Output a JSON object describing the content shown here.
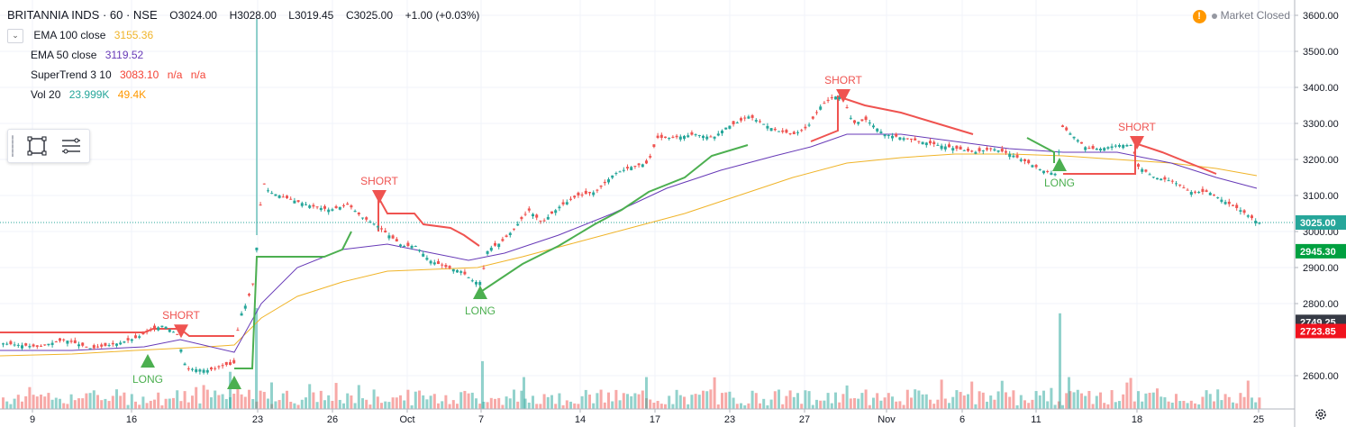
{
  "header": {
    "symbol": "BRITANNIA INDS · 60 · NSE",
    "open": "O3024.00",
    "high": "H3028.00",
    "low": "L3019.45",
    "close": "C3025.00",
    "change": "+1.00 (+0.03%)"
  },
  "indicators": [
    {
      "label": "EMA 100 close",
      "value": "3155.36",
      "value2": "",
      "value3": "",
      "color": "#f0b429"
    },
    {
      "label": "EMA 50 close",
      "value": "3119.52",
      "value2": "",
      "value3": "",
      "color": "#673ab7"
    },
    {
      "label": "SuperTrend 3 10",
      "value": "3083.10",
      "value2": "n/a",
      "value3": "n/a",
      "color": "#f44336"
    },
    {
      "label": "Vol 20",
      "value": "23.999K",
      "value2": "49.4K",
      "value3": "",
      "color": "#26a69a",
      "color2": "#ff9800"
    }
  ],
  "market_status": "Market Closed",
  "chart_data": {
    "type": "candlestick",
    "ylim": [
      2530,
      3620
    ],
    "y_ticks": [
      "3600.00",
      "3500.00",
      "3400.00",
      "3300.00",
      "3200.00",
      "3100.00",
      "3000.00",
      "2900.00",
      "2800.00",
      "2600.00"
    ],
    "x_ticks": [
      "9",
      "16",
      "23",
      "26",
      "Oct",
      "7",
      "14",
      "17",
      "23",
      "27",
      "Nov",
      "6",
      "11",
      "18",
      "25"
    ],
    "price_labels": [
      {
        "text": "3025.00",
        "value": 3025,
        "color": "#26a69a"
      },
      {
        "text": "2945.30",
        "value": 2945.3,
        "color": "#00a040"
      },
      {
        "text": "2749.25",
        "value": 2749.25,
        "color": "#363a45"
      },
      {
        "text": "2723.85",
        "value": 2723.85,
        "color": "#f0131e"
      }
    ],
    "last_price": 3025,
    "signals": [
      {
        "text": "LONG",
        "type": "long",
        "x_index": 0,
        "value": 2640
      },
      {
        "text": "SHORT",
        "type": "short",
        "x_index": 1,
        "value": 2722
      },
      {
        "text": "SHORT",
        "type": "short",
        "x_index": 2,
        "value": 3095
      },
      {
        "text": "LONG",
        "type": "long",
        "x_index": 3,
        "value": 2830
      },
      {
        "text": "SHORT",
        "type": "short",
        "x_index": 4,
        "value": 3375
      },
      {
        "text": "LONG",
        "type": "long",
        "x_index": 5,
        "value": 3185
      },
      {
        "text": "SHORT",
        "type": "short",
        "x_index": 6,
        "value": 3245
      }
    ],
    "extra_long_marker": {
      "value": 2580
    },
    "price_path": [
      [
        0,
        2690
      ],
      [
        40,
        2680
      ],
      [
        70,
        2700
      ],
      [
        100,
        2675
      ],
      [
        130,
        2690
      ],
      [
        150,
        2705
      ],
      [
        165,
        2725
      ],
      [
        180,
        2740
      ],
      [
        195,
        2715
      ],
      [
        205,
        2620
      ],
      [
        230,
        2615
      ],
      [
        250,
        2630
      ],
      [
        258,
        2630
      ],
      [
        264,
        2760
      ],
      [
        272,
        2800
      ],
      [
        280,
        2860
      ],
      [
        285,
        3000
      ],
      [
        290,
        3140
      ],
      [
        297,
        3110
      ],
      [
        320,
        3090
      ],
      [
        345,
        3070
      ],
      [
        365,
        3060
      ],
      [
        385,
        3075
      ],
      [
        400,
        3040
      ],
      [
        415,
        3020
      ],
      [
        430,
        2990
      ],
      [
        445,
        2960
      ],
      [
        460,
        2960
      ],
      [
        475,
        2920
      ],
      [
        495,
        2900
      ],
      [
        510,
        2890
      ],
      [
        525,
        2860
      ],
      [
        532,
        2860
      ],
      [
        540,
        2950
      ],
      [
        555,
        2970
      ],
      [
        570,
        3010
      ],
      [
        585,
        3060
      ],
      [
        600,
        3025
      ],
      [
        620,
        3070
      ],
      [
        640,
        3100
      ],
      [
        660,
        3110
      ],
      [
        680,
        3160
      ],
      [
        700,
        3180
      ],
      [
        718,
        3190
      ],
      [
        728,
        3260
      ],
      [
        745,
        3260
      ],
      [
        770,
        3270
      ],
      [
        790,
        3260
      ],
      [
        805,
        3290
      ],
      [
        815,
        3300
      ],
      [
        830,
        3320
      ],
      [
        845,
        3300
      ],
      [
        860,
        3280
      ],
      [
        880,
        3270
      ],
      [
        895,
        3290
      ],
      [
        910,
        3350
      ],
      [
        925,
        3375
      ],
      [
        935,
        3370
      ],
      [
        945,
        3300
      ],
      [
        960,
        3310
      ],
      [
        980,
        3270
      ],
      [
        1000,
        3260
      ],
      [
        1020,
        3250
      ],
      [
        1040,
        3240
      ],
      [
        1060,
        3230
      ],
      [
        1080,
        3220
      ],
      [
        1100,
        3230
      ],
      [
        1120,
        3215
      ],
      [
        1140,
        3190
      ],
      [
        1155,
        3170
      ],
      [
        1170,
        3160
      ],
      [
        1178,
        3290
      ],
      [
        1192,
        3260
      ],
      [
        1205,
        3230
      ],
      [
        1220,
        3230
      ],
      [
        1240,
        3240
      ],
      [
        1255,
        3240
      ],
      [
        1262,
        3180
      ],
      [
        1280,
        3150
      ],
      [
        1300,
        3140
      ],
      [
        1320,
        3110
      ],
      [
        1340,
        3110
      ],
      [
        1360,
        3080
      ],
      [
        1375,
        3060
      ],
      [
        1395,
        3025
      ]
    ],
    "ema100_path": [
      [
        0,
        2655
      ],
      [
        80,
        2660
      ],
      [
        150,
        2670
      ],
      [
        230,
        2680
      ],
      [
        260,
        2685
      ],
      [
        290,
        2760
      ],
      [
        330,
        2820
      ],
      [
        380,
        2860
      ],
      [
        430,
        2890
      ],
      [
        480,
        2895
      ],
      [
        530,
        2900
      ],
      [
        580,
        2930
      ],
      [
        640,
        2970
      ],
      [
        700,
        3010
      ],
      [
        760,
        3050
      ],
      [
        820,
        3100
      ],
      [
        880,
        3150
      ],
      [
        940,
        3190
      ],
      [
        1000,
        3205
      ],
      [
        1060,
        3215
      ],
      [
        1120,
        3215
      ],
      [
        1180,
        3210
      ],
      [
        1240,
        3200
      ],
      [
        1300,
        3190
      ],
      [
        1350,
        3175
      ],
      [
        1395,
        3155
      ]
    ],
    "ema50_path": [
      [
        0,
        2670
      ],
      [
        80,
        2670
      ],
      [
        160,
        2680
      ],
      [
        200,
        2700
      ],
      [
        260,
        2665
      ],
      [
        290,
        2800
      ],
      [
        330,
        2900
      ],
      [
        380,
        2950
      ],
      [
        430,
        2965
      ],
      [
        480,
        2940
      ],
      [
        520,
        2920
      ],
      [
        560,
        2940
      ],
      [
        620,
        2990
      ],
      [
        680,
        3050
      ],
      [
        740,
        3120
      ],
      [
        800,
        3170
      ],
      [
        860,
        3210
      ],
      [
        900,
        3235
      ],
      [
        940,
        3270
      ],
      [
        1000,
        3270
      ],
      [
        1060,
        3250
      ],
      [
        1120,
        3230
      ],
      [
        1180,
        3220
      ],
      [
        1240,
        3220
      ],
      [
        1300,
        3190
      ],
      [
        1350,
        3150
      ],
      [
        1395,
        3120
      ]
    ],
    "supertrend_path": [
      [
        0,
        2720
      ],
      [
        160,
        2720
      ],
      [
        170,
        2730
      ],
      [
        200,
        2730
      ],
      [
        210,
        2710
      ],
      [
        260,
        2710
      ],
      [
        260,
        2620
      ],
      [
        280,
        2620
      ],
      [
        285,
        2930
      ],
      [
        360,
        2930
      ],
      [
        380,
        2950
      ],
      [
        390,
        3000
      ],
      [
        420,
        3000
      ],
      [
        420,
        3095
      ],
      [
        430,
        3050
      ],
      [
        460,
        3050
      ],
      [
        470,
        3020
      ],
      [
        500,
        3010
      ],
      [
        515,
        2990
      ],
      [
        532,
        2960
      ],
      [
        532,
        2830
      ],
      [
        550,
        2860
      ],
      [
        580,
        2910
      ],
      [
        620,
        2960
      ],
      [
        660,
        3020
      ],
      [
        690,
        3060
      ],
      [
        720,
        3110
      ],
      [
        760,
        3150
      ],
      [
        790,
        3210
      ],
      [
        830,
        3240
      ],
      [
        900,
        3250
      ],
      [
        930,
        3280
      ],
      [
        930,
        3375
      ],
      [
        960,
        3350
      ],
      [
        1000,
        3330
      ],
      [
        1040,
        3300
      ],
      [
        1080,
        3270
      ],
      [
        1140,
        3260
      ],
      [
        1170,
        3220
      ],
      [
        1170,
        3190
      ],
      [
        1180,
        3160
      ],
      [
        1260,
        3160
      ],
      [
        1260,
        3245
      ],
      [
        1290,
        3220
      ],
      [
        1320,
        3190
      ],
      [
        1350,
        3160
      ],
      [
        1375,
        3120
      ],
      [
        1395,
        3083
      ]
    ],
    "volume_spikes": [
      [
        283,
        0.95
      ],
      [
        1175,
        0.9
      ],
      [
        1185,
        0.3
      ],
      [
        534,
        0.45
      ],
      [
        580,
        0.3
      ],
      [
        716,
        0.3
      ],
      [
        254,
        0.35
      ],
      [
        300,
        0.25
      ]
    ]
  }
}
